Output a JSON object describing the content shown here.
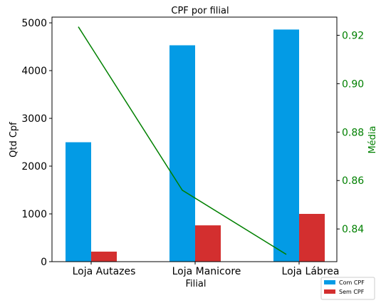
{
  "chart_data": {
    "type": "bar",
    "title": "CPF por filial",
    "xlabel": "Filial",
    "ylabel": "Qtd Cpf",
    "ylabel_right": "Média",
    "categories": [
      "Loja Autazes",
      "Loja Manicore",
      "Loja Lábrea"
    ],
    "series": [
      {
        "name": "Com CPF",
        "type": "bar",
        "axis": "left",
        "color": "#039be5",
        "values": [
          2500,
          4530,
          4860
        ]
      },
      {
        "name": "Sem CPF",
        "type": "bar",
        "axis": "left",
        "color": "#d32f2f",
        "values": [
          210,
          760,
          1000
        ]
      },
      {
        "type": "line",
        "axis": "right",
        "color": "#008000",
        "values": [
          0.9235,
          0.856,
          0.8295
        ]
      }
    ],
    "ylim": [
      0,
      5120
    ],
    "yticks": [
      0,
      1000,
      2000,
      3000,
      4000,
      5000
    ],
    "ylim_right": [
      0.8265,
      0.9275
    ],
    "yticks_right": [
      "0.84",
      "0.86",
      "0.88",
      "0.90",
      "0.92"
    ],
    "grid": false,
    "legend_position": "lower-right, outside the axes"
  }
}
